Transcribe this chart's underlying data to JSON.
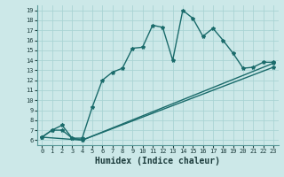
{
  "xlabel": "Humidex (Indice chaleur)",
  "bg_color": "#cce8e8",
  "line_color": "#1a6b6b",
  "grid_color": "#aad4d4",
  "xlim": [
    -0.5,
    23.5
  ],
  "ylim": [
    5.5,
    19.5
  ],
  "xticks": [
    0,
    1,
    2,
    3,
    4,
    5,
    6,
    7,
    8,
    9,
    10,
    11,
    12,
    13,
    14,
    15,
    16,
    17,
    18,
    19,
    20,
    21,
    22,
    23
  ],
  "yticks": [
    6,
    7,
    8,
    9,
    10,
    11,
    12,
    13,
    14,
    15,
    16,
    17,
    18,
    19
  ],
  "line1_x": [
    0,
    1,
    2,
    3,
    4,
    5,
    6,
    7,
    8,
    9,
    10,
    11,
    12,
    13,
    14,
    15,
    16,
    17,
    18,
    19,
    20,
    21,
    22,
    23
  ],
  "line1_y": [
    6.3,
    7.0,
    7.0,
    6.2,
    6.2,
    9.3,
    12.0,
    12.8,
    13.2,
    15.2,
    15.3,
    17.5,
    17.3,
    14.0,
    19.0,
    18.2,
    16.4,
    17.2,
    16.0,
    14.7,
    13.2,
    13.3,
    13.8,
    13.8
  ],
  "line2_x": [
    0,
    1,
    2,
    3,
    4,
    23
  ],
  "line2_y": [
    6.3,
    7.0,
    7.5,
    6.2,
    6.0,
    13.7
  ],
  "line3_x": [
    0,
    4,
    23
  ],
  "line3_y": [
    6.3,
    6.0,
    13.3
  ],
  "marker": "*",
  "markersize": 3,
  "linewidth": 1.0,
  "xlabel_fontsize": 7,
  "tick_fontsize": 5
}
